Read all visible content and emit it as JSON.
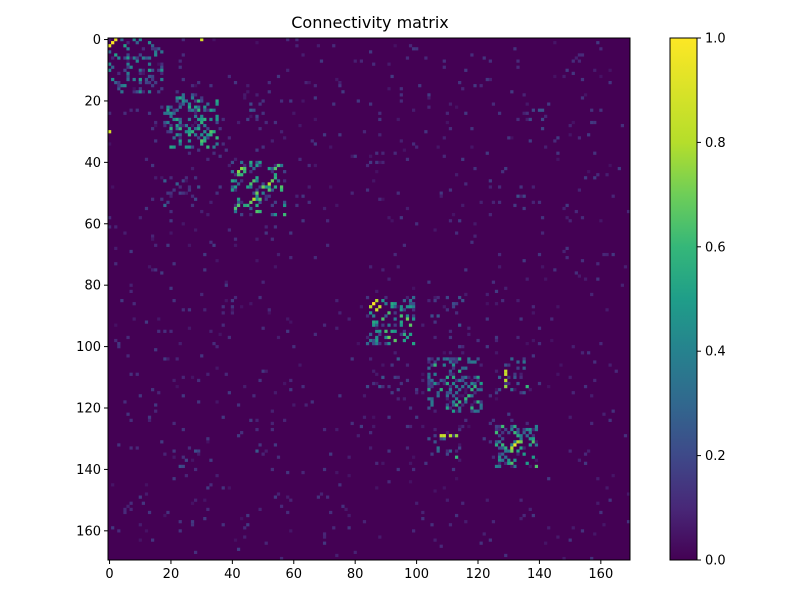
{
  "chart_data": {
    "type": "heatmap",
    "title": "Connectivity matrix",
    "xlabel": "",
    "ylabel": "",
    "size": 170,
    "xlim": [
      0,
      170
    ],
    "ylim": [
      170,
      0
    ],
    "x_ticks": [
      0,
      20,
      40,
      60,
      80,
      100,
      120,
      140,
      160
    ],
    "y_ticks": [
      0,
      20,
      40,
      60,
      80,
      100,
      120,
      140,
      160
    ],
    "colorbar": {
      "range": [
        0.0,
        1.0
      ],
      "ticks": [
        "0.0",
        "0.2",
        "0.4",
        "0.6",
        "0.8",
        "1.0"
      ],
      "colormap": "viridis"
    },
    "background_value": 0.0,
    "colors": {
      "low": "#440154",
      "high": "#fde725"
    },
    "blocks": [
      {
        "rows": [
          0,
          18
        ],
        "cols": [
          0,
          18
        ],
        "density": 0.25,
        "max": 0.55
      },
      {
        "rows": [
          18,
          36
        ],
        "cols": [
          18,
          36
        ],
        "density": 0.3,
        "max": 0.6
      },
      {
        "rows": [
          40,
          58
        ],
        "cols": [
          40,
          58
        ],
        "density": 0.3,
        "max": 0.75
      },
      {
        "rows": [
          84,
          100
        ],
        "cols": [
          84,
          100
        ],
        "density": 0.28,
        "max": 0.7
      },
      {
        "rows": [
          104,
          122
        ],
        "cols": [
          104,
          122
        ],
        "density": 0.3,
        "max": 0.6
      },
      {
        "rows": [
          126,
          140
        ],
        "cols": [
          126,
          140
        ],
        "density": 0.32,
        "max": 0.65
      }
    ],
    "off_diagonal_blocks": [
      {
        "rows": [
          18,
          30
        ],
        "cols": [
          44,
          52
        ],
        "density": 0.12,
        "max": 0.3
      },
      {
        "rows": [
          44,
          56
        ],
        "cols": [
          18,
          30
        ],
        "density": 0.12,
        "max": 0.3
      },
      {
        "rows": [
          48,
          56
        ],
        "cols": [
          132,
          140
        ],
        "density": 0.1,
        "max": 0.25
      },
      {
        "rows": [
          132,
          140
        ],
        "cols": [
          48,
          56
        ],
        "density": 0.1,
        "max": 0.25
      },
      {
        "rows": [
          104,
          116
        ],
        "cols": [
          84,
          96
        ],
        "density": 0.1,
        "max": 0.25
      },
      {
        "rows": [
          84,
          96
        ],
        "cols": [
          104,
          116
        ],
        "density": 0.1,
        "max": 0.25
      },
      {
        "rows": [
          126,
          136
        ],
        "cols": [
          104,
          116
        ],
        "density": 0.14,
        "max": 0.35
      },
      {
        "rows": [
          104,
          116
        ],
        "cols": [
          126,
          136
        ],
        "density": 0.14,
        "max": 0.35
      },
      {
        "rows": [
          22,
          30
        ],
        "cols": [
          134,
          142
        ],
        "density": 0.1,
        "max": 0.25
      },
      {
        "rows": [
          134,
          142
        ],
        "cols": [
          20,
          30
        ],
        "density": 0.1,
        "max": 0.25
      }
    ],
    "highlights": [
      {
        "row": 1,
        "col": 1,
        "value": 1.0
      },
      {
        "row": 2,
        "col": 0,
        "value": 0.95
      },
      {
        "row": 0,
        "col": 30,
        "value": 0.9
      },
      {
        "row": 30,
        "col": 0,
        "value": 0.9
      },
      {
        "row": 86,
        "col": 86,
        "value": 1.0
      },
      {
        "row": 87,
        "col": 88,
        "value": 0.85
      },
      {
        "row": 85,
        "col": 87,
        "value": 0.8
      },
      {
        "row": 47,
        "col": 52,
        "value": 0.8
      },
      {
        "row": 50,
        "col": 48,
        "value": 0.7
      },
      {
        "row": 52,
        "col": 49,
        "value": 0.65
      },
      {
        "row": 43,
        "col": 44,
        "value": 0.6
      },
      {
        "row": 30,
        "col": 33,
        "value": 0.65
      },
      {
        "row": 129,
        "col": 109,
        "value": 0.85
      },
      {
        "row": 129,
        "col": 111,
        "value": 0.8
      },
      {
        "row": 129,
        "col": 113,
        "value": 0.75
      },
      {
        "row": 108,
        "col": 129,
        "value": 0.85
      },
      {
        "row": 111,
        "col": 129,
        "value": 0.75
      },
      {
        "row": 113,
        "col": 129,
        "value": 0.75
      },
      {
        "row": 132,
        "col": 132,
        "value": 0.95
      },
      {
        "row": 133,
        "col": 131,
        "value": 0.8
      },
      {
        "row": 131,
        "col": 134,
        "value": 0.7
      },
      {
        "row": 116,
        "col": 117,
        "value": 0.6
      },
      {
        "row": 112,
        "col": 110,
        "value": 0.55
      },
      {
        "row": 92,
        "col": 87,
        "value": 0.5
      },
      {
        "row": 86,
        "col": 92,
        "value": 0.5
      },
      {
        "row": 136,
        "col": 113,
        "value": 0.6
      },
      {
        "row": 113,
        "col": 136,
        "value": 0.5
      }
    ],
    "seed": 12345
  }
}
